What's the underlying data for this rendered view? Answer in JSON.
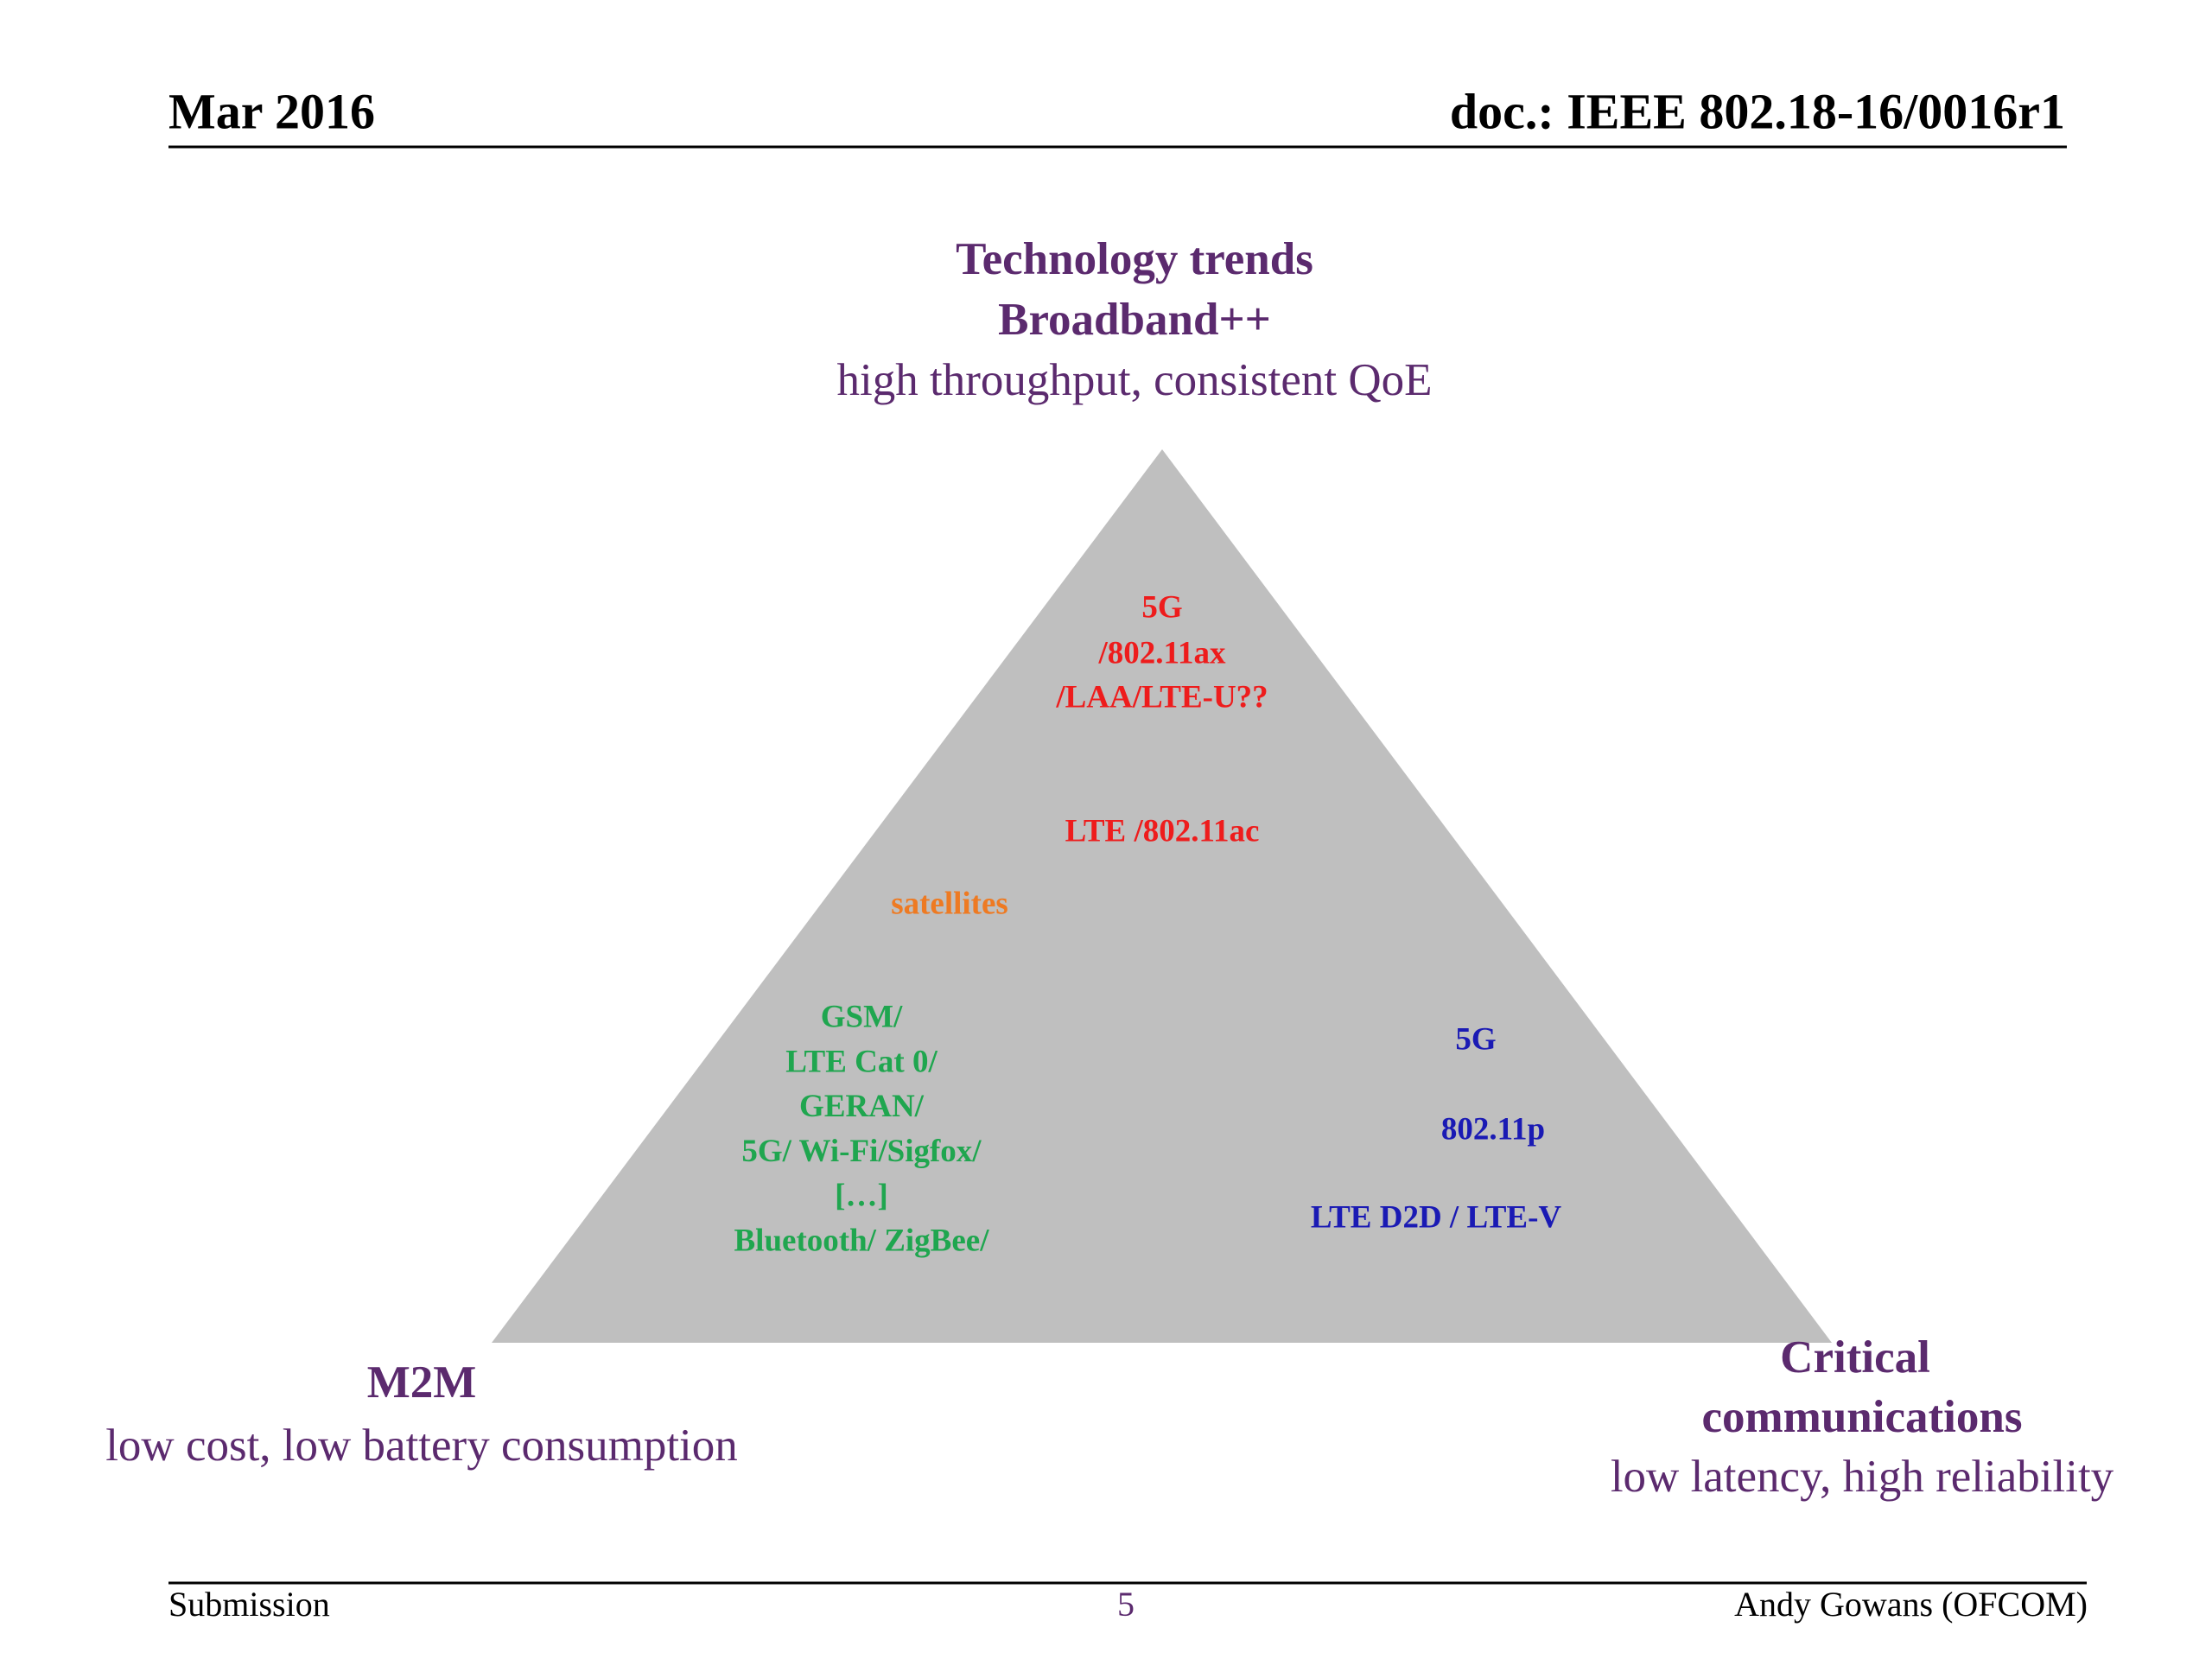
{
  "header": {
    "date": "Mar 2016",
    "doc": "doc.: IEEE 802.18-16/0016r1"
  },
  "top": {
    "title": "Technology trends",
    "subtitle": "Broadband++",
    "description": "high throughput, consistent QoE"
  },
  "left": {
    "title": "M2M",
    "description": "low cost, low battery consumption"
  },
  "right": {
    "title_lines": [
      "Critical",
      "communications"
    ],
    "description": "low latency, high reliability"
  },
  "triangle": {
    "broadband": [
      "5G",
      "/802.11ax",
      "/LAA/LTE-U??",
      "LTE /802.11ac"
    ],
    "satellites": "satellites",
    "m2m": [
      "GSM/",
      "LTE Cat 0/",
      "GERAN/",
      "5G/ Wi-Fi/Sigfox/",
      "[…]",
      "Bluetooth/ ZigBee/"
    ],
    "critical": [
      "5G",
      "802.11p",
      "LTE D2D / LTE-V"
    ]
  },
  "footer": {
    "left": "Submission",
    "page": "5",
    "right": "Andy Gowans (OFCOM)"
  }
}
